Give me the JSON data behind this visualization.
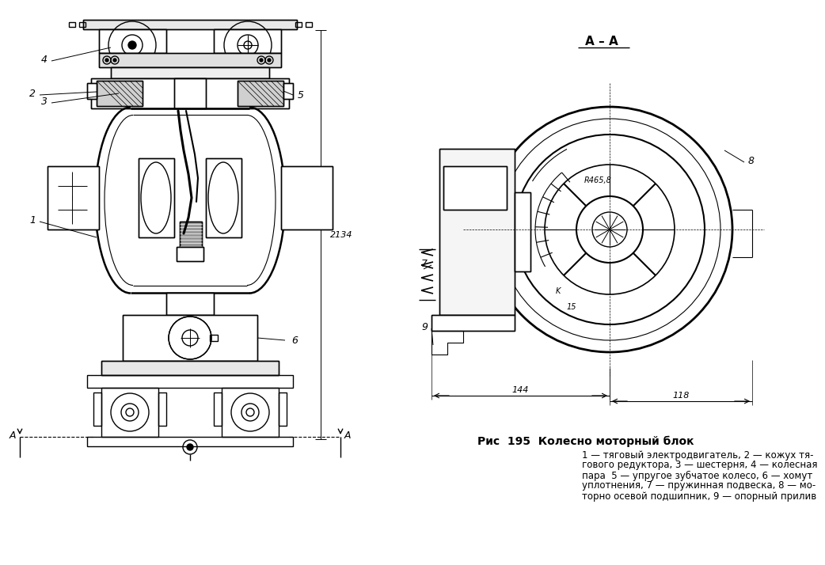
{
  "bg_color": "#ffffff",
  "fig_width": 10.13,
  "fig_height": 6.94,
  "dpi": 100,
  "title_text": "Рис  195  Колесно моторный блок",
  "caption_line1": "1 — тяговый электродвигатель, 2 — кожух тя-",
  "caption_line2": "гового редуктора, 3 — шестерня, 4 — колесная",
  "caption_line3": "пара  5 — упругое зубчатое колесо, 6 — хомут",
  "caption_line4": "уплотнения, 7 — пружинная подвеска, 8 — мо-",
  "caption_line5": "торно осевой подшипник, 9 — опорный прилив",
  "section_label": "A – A",
  "dim_2134": "2134",
  "dim_144": "144",
  "dim_118": "118",
  "dim_15": "15",
  "dim_r": "R465,8",
  "lc": "#000000"
}
